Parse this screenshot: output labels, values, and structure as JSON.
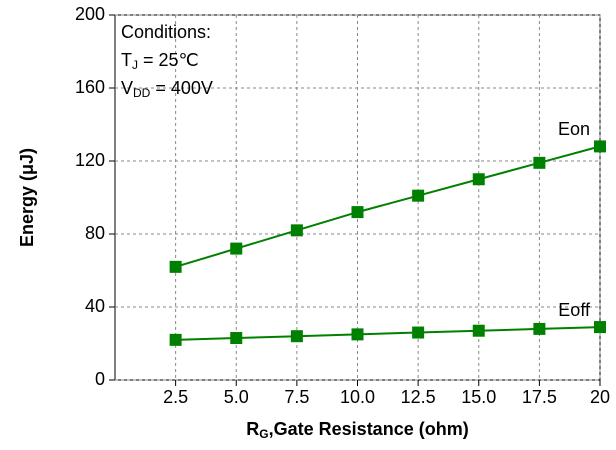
{
  "chart_data": {
    "type": "line",
    "y_label": "Energy (μJ)",
    "x_label": {
      "main": "R",
      "sub": "G",
      "rest": ",Gate Resistance (ohm)"
    },
    "conditions": [
      {
        "main": "Conditions:"
      },
      {
        "main": "T",
        "sub": "J",
        "rest": " = 25℃"
      },
      {
        "main": "V",
        "sub": "DD",
        "rest": " = 400V"
      }
    ],
    "x": [
      2.5,
      5,
      7.5,
      10,
      12.5,
      15,
      17.5,
      20
    ],
    "series": [
      {
        "name": "Eon",
        "color": "#008000",
        "values": [
          62,
          72,
          82,
          92,
          101,
          110,
          119,
          128
        ]
      },
      {
        "name": "Eoff",
        "color": "#008000",
        "values": [
          22,
          23,
          24,
          25,
          26,
          27,
          28,
          29
        ]
      }
    ],
    "xlim": [
      0,
      20
    ],
    "xticks": [
      2.5,
      {
        "value": 5,
        "label": "5.0"
      },
      7.5,
      {
        "value": 10,
        "label": "10.0"
      },
      12.5,
      {
        "value": 15,
        "label": "15.0"
      },
      17.5,
      20
    ],
    "ylim": [
      0,
      200
    ],
    "yticks": [
      0,
      40,
      80,
      120,
      160,
      200
    ],
    "grid": true
  }
}
